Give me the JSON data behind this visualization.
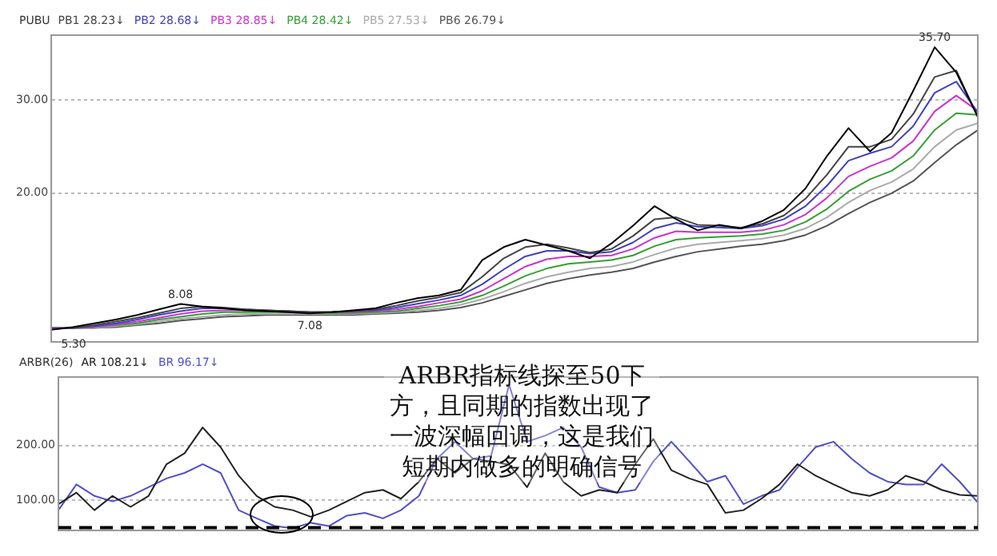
{
  "chart_data": [
    {
      "type": "line",
      "legend_title": "PUBU",
      "legend": "top left",
      "grid": "y",
      "marker": "none",
      "line_style": "solid",
      "categories": [
        null,
        null,
        null,
        null,
        null,
        null,
        null,
        null,
        null,
        null,
        null,
        null,
        null,
        null,
        null,
        null,
        null,
        null,
        null,
        null,
        null,
        null,
        null,
        null,
        null,
        null,
        null,
        null,
        null,
        null,
        null,
        null,
        null,
        null,
        null,
        null,
        null,
        null,
        null,
        null,
        null,
        null,
        null,
        null
      ],
      "ylim": [
        4,
        37
      ],
      "yticks": [
        {
          "value": 20,
          "label": "20.00"
        },
        {
          "value": 30,
          "label": "30.00"
        }
      ],
      "series": [
        {
          "color": "#000000",
          "values": [
            5.3,
            5.6,
            6.0,
            6.4,
            6.9,
            7.5,
            8.08,
            7.8,
            7.6,
            7.4,
            7.3,
            7.2,
            7.08,
            7.2,
            7.4,
            7.6,
            8.2,
            8.7,
            9.0,
            9.6,
            12.8,
            14.2,
            15.0,
            14.4,
            13.8,
            13.0,
            14.6,
            16.5,
            18.6,
            17.2,
            16.0,
            16.6,
            16.2,
            17.0,
            18.2,
            20.5,
            24.0,
            27.0,
            24.5,
            26.5,
            31.0,
            35.7,
            33.0,
            28.2
          ]
        },
        {
          "name": "PB1 28.23↓",
          "color": "#444444",
          "values": [
            5.4,
            5.5,
            5.8,
            6.2,
            6.6,
            7.1,
            7.6,
            7.8,
            7.7,
            7.5,
            7.4,
            7.3,
            7.2,
            7.2,
            7.3,
            7.5,
            7.9,
            8.4,
            8.8,
            9.3,
            11.0,
            13.0,
            14.2,
            14.5,
            14.1,
            13.6,
            14.0,
            15.4,
            17.2,
            17.4,
            16.6,
            16.5,
            16.3,
            16.7,
            17.6,
            19.4,
            22.0,
            25.0,
            25.0,
            25.8,
            28.5,
            32.5,
            33.2,
            28.23
          ]
        },
        {
          "name": "PB2 28.68↓",
          "color": "#4040c0",
          "values": [
            5.4,
            5.5,
            5.7,
            6.0,
            6.4,
            6.9,
            7.3,
            7.6,
            7.6,
            7.5,
            7.4,
            7.3,
            7.2,
            7.2,
            7.3,
            7.4,
            7.7,
            8.1,
            8.5,
            9.0,
            10.2,
            11.8,
            13.2,
            13.8,
            13.8,
            13.5,
            13.7,
            14.7,
            16.2,
            16.8,
            16.4,
            16.3,
            16.2,
            16.5,
            17.2,
            18.6,
            20.8,
            23.5,
            24.3,
            25.0,
            27.2,
            30.8,
            32.0,
            28.68
          ]
        },
        {
          "name": "PB3 28.85↓",
          "color": "#cc33cc",
          "values": [
            5.5,
            5.5,
            5.6,
            5.9,
            6.2,
            6.6,
            7.0,
            7.3,
            7.4,
            7.4,
            7.3,
            7.3,
            7.2,
            7.2,
            7.2,
            7.3,
            7.5,
            7.8,
            8.2,
            8.6,
            9.5,
            10.8,
            12.1,
            12.9,
            13.2,
            13.2,
            13.3,
            14.0,
            15.2,
            15.9,
            15.8,
            15.8,
            15.8,
            16.0,
            16.6,
            17.7,
            19.5,
            21.8,
            22.9,
            23.8,
            25.6,
            28.8,
            30.5,
            28.85
          ]
        },
        {
          "name": "PB4 28.42↓",
          "color": "#33a033",
          "values": [
            5.5,
            5.5,
            5.6,
            5.8,
            6.0,
            6.4,
            6.7,
            7.0,
            7.2,
            7.2,
            7.2,
            7.2,
            7.1,
            7.1,
            7.1,
            7.2,
            7.3,
            7.6,
            7.9,
            8.3,
            9.0,
            10.0,
            11.1,
            11.9,
            12.4,
            12.6,
            12.8,
            13.3,
            14.3,
            15.0,
            15.2,
            15.3,
            15.4,
            15.6,
            16.0,
            16.9,
            18.3,
            20.2,
            21.5,
            22.4,
            24.0,
            26.8,
            28.6,
            28.42
          ]
        },
        {
          "name": "PB5 27.53↓",
          "color": "#aaaaaa",
          "values": [
            5.5,
            5.5,
            5.5,
            5.7,
            5.9,
            6.2,
            6.5,
            6.7,
            6.9,
            7.0,
            7.0,
            7.0,
            7.0,
            7.0,
            7.0,
            7.1,
            7.2,
            7.4,
            7.6,
            8.0,
            8.6,
            9.4,
            10.3,
            11.0,
            11.5,
            11.9,
            12.1,
            12.6,
            13.4,
            14.1,
            14.5,
            14.7,
            14.9,
            15.1,
            15.5,
            16.2,
            17.4,
            19.0,
            20.3,
            21.2,
            22.6,
            25.0,
            26.8,
            27.53
          ]
        },
        {
          "name": "PB6 26.79↓",
          "color": "#555555",
          "values": [
            5.5,
            5.5,
            5.5,
            5.6,
            5.8,
            6.0,
            6.3,
            6.5,
            6.7,
            6.8,
            6.9,
            6.9,
            6.9,
            6.9,
            6.9,
            7.0,
            7.1,
            7.2,
            7.4,
            7.7,
            8.2,
            8.9,
            9.6,
            10.3,
            10.8,
            11.2,
            11.5,
            11.9,
            12.6,
            13.2,
            13.7,
            14.0,
            14.3,
            14.5,
            14.9,
            15.5,
            16.5,
            17.8,
            19.0,
            20.0,
            21.3,
            23.3,
            25.2,
            26.79
          ]
        }
      ],
      "annotations": [
        {
          "text": "35.70",
          "y": 35.7
        },
        {
          "text": "8.08",
          "y": 8.08
        },
        {
          "text": "7.08",
          "y": 7.08
        },
        {
          "text": "5.30",
          "y": 5.3
        }
      ]
    },
    {
      "type": "line",
      "legend_title": "ARBR(26)",
      "legend": "top left",
      "grid": "y",
      "marker": "none",
      "line_style": "solid",
      "categories": [
        null,
        null,
        null,
        null,
        null,
        null,
        null,
        null,
        null,
        null,
        null,
        null,
        null,
        null,
        null,
        null,
        null,
        null,
        null,
        null,
        null,
        null,
        null,
        null,
        null,
        null,
        null,
        null,
        null,
        null,
        null,
        null,
        null,
        null,
        null,
        null,
        null,
        null,
        null,
        null,
        null,
        null,
        null,
        null,
        null,
        null,
        null,
        null,
        null,
        null,
        null,
        null
      ],
      "ylim": [
        45,
        325
      ],
      "yticks": [
        {
          "value": 100,
          "label": "100.00"
        },
        {
          "value": 200,
          "label": "200.00"
        }
      ],
      "series": [
        {
          "name": "AR 108.21↓",
          "color": "#222222",
          "values": [
            93,
            114,
            82,
            108,
            88,
            108,
            166,
            186,
            233,
            197,
            145,
            108,
            88,
            82,
            70,
            82,
            98,
            114,
            119,
            103,
            134,
            176,
            150,
            176,
            171,
            165,
            124,
            186,
            134,
            108,
            119,
            114,
            166,
            212,
            155,
            140,
            129,
            77,
            82,
            103,
            129,
            166,
            145,
            129,
            114,
            108,
            119,
            145,
            134,
            119,
            110,
            108
          ]
        },
        {
          "name": "BR 96.17↓",
          "color": "#5050c8",
          "values": [
            82,
            129,
            108,
            98,
            108,
            124,
            140,
            150,
            166,
            150,
            82,
            67,
            53,
            49,
            59,
            53,
            72,
            77,
            67,
            82,
            108,
            176,
            207,
            176,
            181,
            311,
            207,
            218,
            233,
            197,
            124,
            114,
            119,
            171,
            207,
            171,
            134,
            145,
            93,
            108,
            119,
            160,
            197,
            207,
            176,
            150,
            134,
            129,
            129,
            166,
            134,
            96
          ]
        }
      ],
      "ref_lines": [
        {
          "axis": "y",
          "value": 50,
          "color": "#000000",
          "line_style": "dashed"
        }
      ],
      "annotations": [
        "ARBR指标线探至50下方，且同期的指数出现了一波深幅回调，这是我们短期内做多的明确信号"
      ]
    }
  ]
}
